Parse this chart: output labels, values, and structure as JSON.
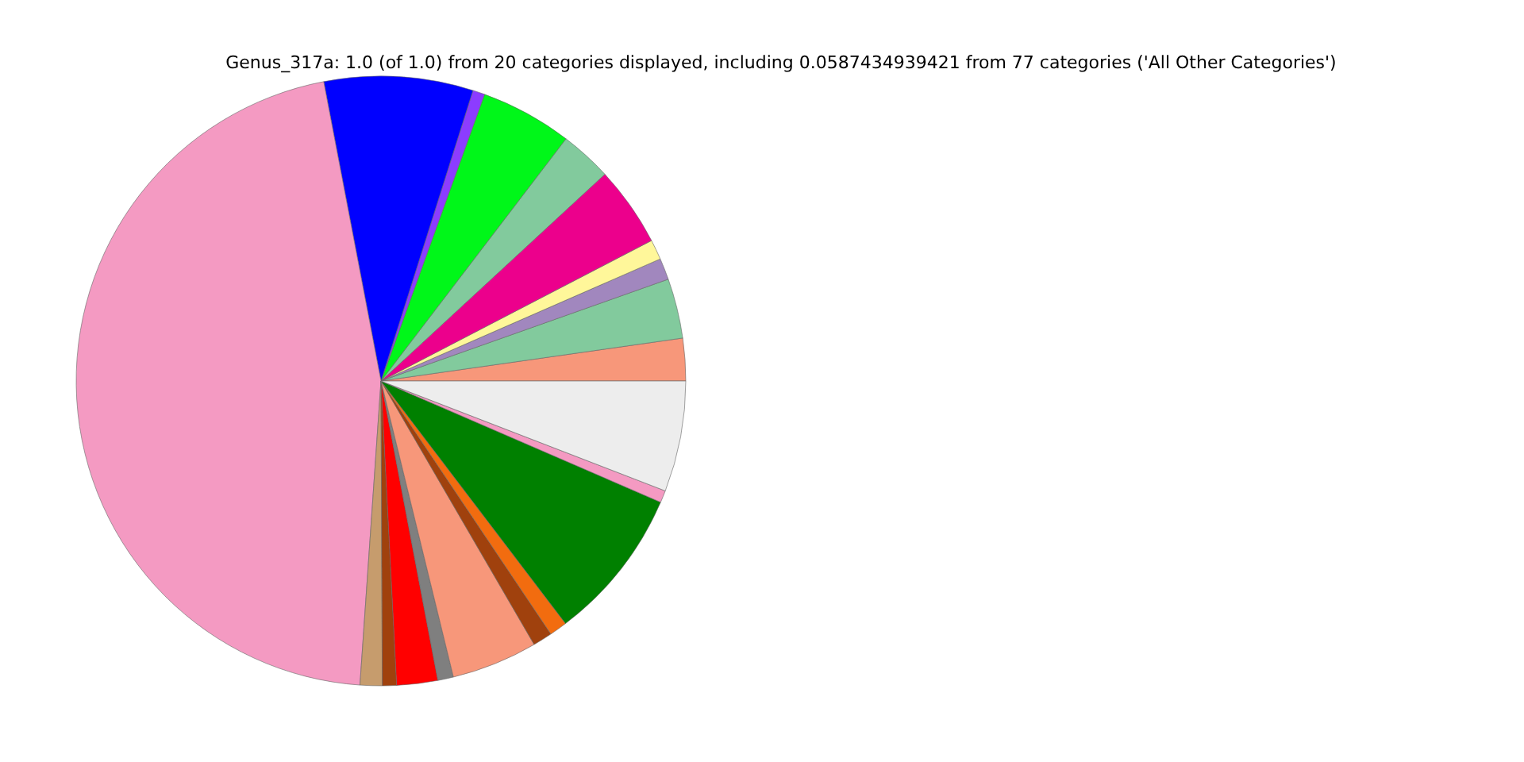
{
  "chart_data": {
    "type": "pie",
    "title": "Genus_317a: 1.0 (of 1.0) from 20 categories displayed, including 0.0587434939421 from 77 categories ('All Other Categories')",
    "categories": [
      null,
      null,
      null,
      null,
      null,
      null,
      null,
      null,
      null,
      null,
      null,
      null,
      null,
      null,
      null,
      null,
      null,
      null,
      null,
      null
    ],
    "values": [
      2.25,
      3.17,
      1.14,
      1.06,
      4.25,
      2.75,
      4.86,
      0.64,
      7.89,
      45.89,
      1.17,
      0.75,
      2.17,
      0.83,
      4.56,
      1.03,
      0.94,
      8.14,
      0.64,
      5.87
    ],
    "colors": [
      "#f7977a",
      "#82ca9d",
      "#a187be",
      "#fff79a",
      "#ec008c",
      "#82ca9d",
      "#00f719",
      "#8c3cff",
      "#0000ff",
      "#f49ac2",
      "#c69c6d",
      "#a0410d",
      "#ff0000",
      "#7f7f7f",
      "#f7977a",
      "#a0410d",
      "#f26c0f",
      "#008000",
      "#f49ac2",
      "#ededed"
    ]
  }
}
